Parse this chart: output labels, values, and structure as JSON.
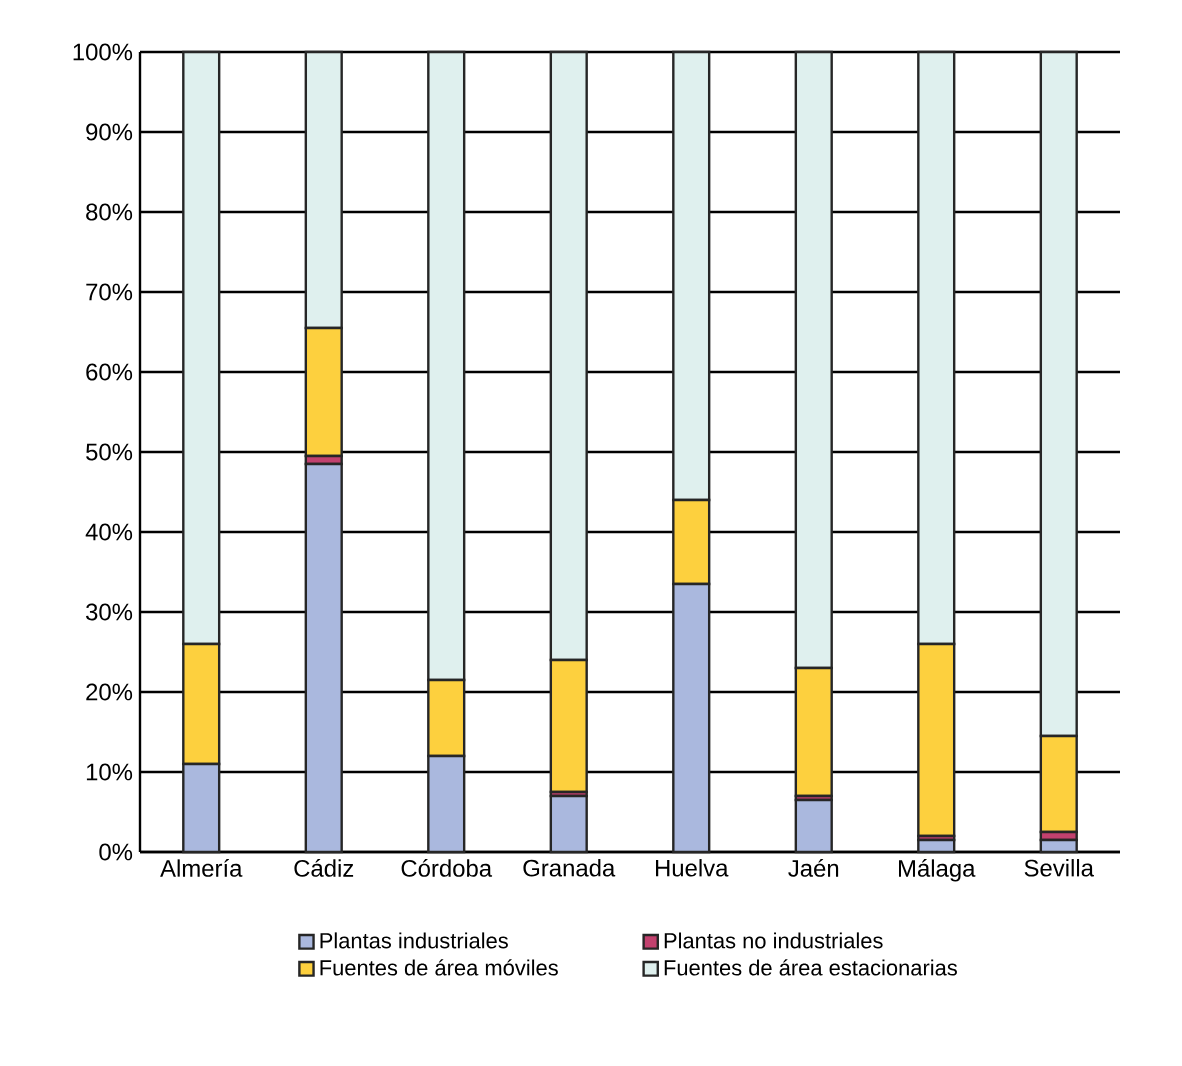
{
  "chart_data": {
    "type": "bar",
    "stacked": true,
    "categories": [
      "Almería",
      "Cádiz",
      "Córdoba",
      "Granada",
      "Huelva",
      "Jaén",
      "Málaga",
      "Sevilla"
    ],
    "series": [
      {
        "name": "Plantas industriales",
        "color": "#aab8de",
        "values": [
          11,
          48.5,
          12,
          7,
          33.5,
          6.5,
          1.5,
          1.5
        ]
      },
      {
        "name": "Plantas no industriales",
        "color": "#c2416e",
        "values": [
          0,
          1,
          0,
          0.5,
          0,
          0.5,
          0.5,
          1
        ]
      },
      {
        "name": "Fuentes de área móviles",
        "color": "#fdd03e",
        "values": [
          15,
          16,
          9.5,
          16.5,
          10.5,
          16,
          24,
          12
        ]
      },
      {
        "name": "Fuentes de área estacionarias",
        "color": "#dff0ee",
        "values": [
          74,
          34.5,
          78.5,
          76,
          56,
          77,
          74,
          85.5
        ]
      }
    ],
    "ylim": [
      0,
      100
    ],
    "yticks": [
      {
        "value": 0,
        "label": "0%"
      },
      {
        "value": 10,
        "label": "10%"
      },
      {
        "value": 20,
        "label": "20%"
      },
      {
        "value": 30,
        "label": "30%"
      },
      {
        "value": 40,
        "label": "40%"
      },
      {
        "value": 50,
        "label": "50%"
      },
      {
        "value": 60,
        "label": "60%"
      },
      {
        "value": 70,
        "label": "70%"
      },
      {
        "value": 80,
        "label": "80%"
      },
      {
        "value": 90,
        "label": "90%"
      },
      {
        "value": 100,
        "label": "100%"
      }
    ],
    "grid": "y",
    "legend": "bottom"
  }
}
